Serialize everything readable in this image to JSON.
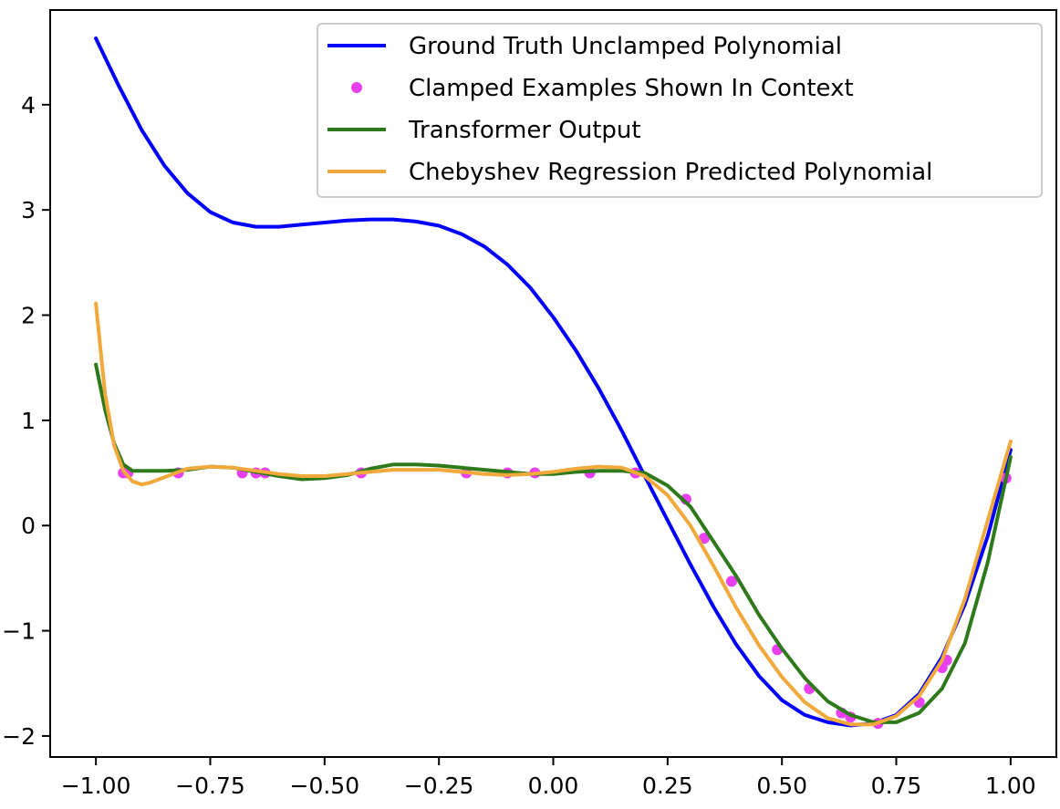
{
  "chart_data": {
    "type": "line",
    "title": "",
    "xlabel": "",
    "ylabel": "",
    "xlim": [
      -1.1,
      1.1
    ],
    "ylim": [
      -2.2,
      4.9
    ],
    "xticks": [
      -1.0,
      -0.75,
      -0.5,
      -0.25,
      0.0,
      0.25,
      0.5,
      0.75,
      1.0
    ],
    "xtick_labels": [
      "−1.00",
      "−0.75",
      "−0.50",
      "−0.25",
      "0.00",
      "0.25",
      "0.50",
      "0.75",
      "1.00"
    ],
    "yticks": [
      -2,
      -1,
      0,
      1,
      2,
      3,
      4
    ],
    "ytick_labels": [
      "−2",
      "−1",
      "0",
      "1",
      "2",
      "3",
      "4"
    ],
    "grid": false,
    "legend_position": "upper right",
    "series": [
      {
        "name": "Ground Truth Unclamped Polynomial",
        "kind": "line",
        "color": "#0000ff",
        "x": [
          -1.0,
          -0.95,
          -0.9,
          -0.85,
          -0.8,
          -0.75,
          -0.7,
          -0.65,
          -0.6,
          -0.55,
          -0.5,
          -0.45,
          -0.4,
          -0.35,
          -0.3,
          -0.25,
          -0.2,
          -0.15,
          -0.1,
          -0.05,
          0.0,
          0.05,
          0.1,
          0.15,
          0.2,
          0.25,
          0.3,
          0.35,
          0.4,
          0.45,
          0.5,
          0.55,
          0.6,
          0.65,
          0.7,
          0.75,
          0.8,
          0.85,
          0.9,
          0.95,
          1.0
        ],
        "y": [
          4.63,
          4.18,
          3.76,
          3.42,
          3.16,
          2.98,
          2.88,
          2.84,
          2.84,
          2.86,
          2.88,
          2.9,
          2.91,
          2.91,
          2.89,
          2.85,
          2.77,
          2.65,
          2.48,
          2.26,
          1.98,
          1.66,
          1.3,
          0.9,
          0.47,
          0.05,
          -0.37,
          -0.77,
          -1.13,
          -1.43,
          -1.66,
          -1.8,
          -1.87,
          -1.9,
          -1.88,
          -1.8,
          -1.6,
          -1.25,
          -0.75,
          -0.1,
          0.72
        ]
      },
      {
        "name": "Clamped Examples Shown In Context",
        "kind": "scatter",
        "color": "#e83ff0",
        "x": [
          -0.94,
          -0.93,
          -0.82,
          -0.68,
          -0.65,
          -0.63,
          -0.42,
          -0.19,
          -0.1,
          -0.04,
          0.08,
          0.18,
          0.29,
          0.33,
          0.39,
          0.49,
          0.56,
          0.63,
          0.65,
          0.71,
          0.8,
          0.85,
          0.86,
          0.99
        ],
        "y": [
          0.5,
          0.5,
          0.5,
          0.5,
          0.5,
          0.5,
          0.5,
          0.5,
          0.5,
          0.5,
          0.5,
          0.5,
          0.25,
          -0.12,
          -0.53,
          -1.18,
          -1.55,
          -1.78,
          -1.82,
          -1.88,
          -1.68,
          -1.35,
          -1.28,
          0.45
        ]
      },
      {
        "name": "Transformer Output",
        "kind": "line",
        "color": "#2e7a1b",
        "x": [
          -1.0,
          -0.98,
          -0.96,
          -0.94,
          -0.92,
          -0.9,
          -0.85,
          -0.8,
          -0.75,
          -0.7,
          -0.65,
          -0.6,
          -0.55,
          -0.5,
          -0.45,
          -0.4,
          -0.35,
          -0.3,
          -0.25,
          -0.2,
          -0.15,
          -0.1,
          -0.05,
          0.0,
          0.05,
          0.1,
          0.15,
          0.2,
          0.25,
          0.3,
          0.35,
          0.4,
          0.45,
          0.5,
          0.55,
          0.6,
          0.65,
          0.7,
          0.75,
          0.8,
          0.85,
          0.9,
          0.95,
          1.0
        ],
        "y": [
          1.53,
          1.1,
          0.78,
          0.58,
          0.52,
          0.52,
          0.52,
          0.53,
          0.56,
          0.55,
          0.51,
          0.47,
          0.44,
          0.45,
          0.48,
          0.54,
          0.58,
          0.58,
          0.57,
          0.55,
          0.53,
          0.51,
          0.49,
          0.49,
          0.51,
          0.52,
          0.52,
          0.5,
          0.38,
          0.18,
          -0.15,
          -0.48,
          -0.85,
          -1.17,
          -1.45,
          -1.67,
          -1.8,
          -1.87,
          -1.87,
          -1.78,
          -1.55,
          -1.12,
          -0.35,
          0.65
        ]
      },
      {
        "name": "Chebyshev Regression Predicted Polynomial",
        "kind": "line",
        "color": "#f0a93a",
        "x": [
          -1.0,
          -0.98,
          -0.96,
          -0.94,
          -0.92,
          -0.9,
          -0.88,
          -0.85,
          -0.8,
          -0.75,
          -0.7,
          -0.65,
          -0.6,
          -0.55,
          -0.5,
          -0.45,
          -0.4,
          -0.35,
          -0.3,
          -0.25,
          -0.2,
          -0.15,
          -0.1,
          -0.05,
          0.0,
          0.05,
          0.1,
          0.15,
          0.2,
          0.25,
          0.3,
          0.35,
          0.4,
          0.45,
          0.5,
          0.55,
          0.6,
          0.65,
          0.7,
          0.75,
          0.8,
          0.85,
          0.9,
          0.95,
          1.0
        ],
        "y": [
          2.11,
          1.25,
          0.76,
          0.52,
          0.42,
          0.39,
          0.41,
          0.46,
          0.54,
          0.56,
          0.55,
          0.52,
          0.49,
          0.47,
          0.47,
          0.49,
          0.51,
          0.53,
          0.53,
          0.53,
          0.51,
          0.49,
          0.48,
          0.49,
          0.51,
          0.54,
          0.56,
          0.55,
          0.47,
          0.29,
          0.0,
          -0.38,
          -0.78,
          -1.14,
          -1.44,
          -1.68,
          -1.83,
          -1.89,
          -1.89,
          -1.81,
          -1.62,
          -1.28,
          -0.7,
          0.05,
          0.8
        ]
      }
    ]
  }
}
